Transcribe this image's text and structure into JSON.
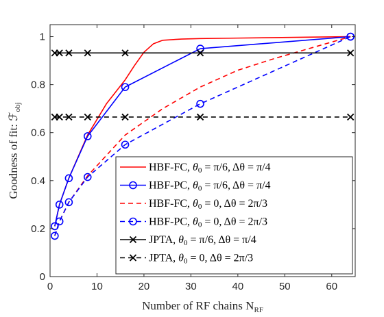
{
  "chart_data": {
    "type": "line",
    "xlabel": "Number of RF chains N",
    "xlabel_sub": "RF",
    "ylabel": "Goodness of fit: ℱ",
    "ylabel_sub": "obj",
    "xlim": [
      0,
      65
    ],
    "ylim": [
      0,
      1.05
    ],
    "xticks": [
      0,
      10,
      20,
      30,
      40,
      50,
      60
    ],
    "yticks": [
      0,
      0.2,
      0.4,
      0.6,
      0.8,
      1
    ],
    "ytick_labels": [
      "0",
      "0.2",
      "0.4",
      "0.6",
      "0.8",
      "1"
    ],
    "grid": false,
    "legend_position": "bottom-right",
    "series": [
      {
        "name": "HBF-FC, θ0 = π/6, Δθ = π/4",
        "color": "#ff0000",
        "dash": "solid",
        "marker": "none",
        "x": [
          1,
          2,
          4,
          8,
          12,
          16,
          18,
          20,
          22,
          24,
          28,
          32,
          40,
          48,
          56,
          64
        ],
        "y": [
          0.21,
          0.3,
          0.41,
          0.59,
          0.72,
          0.82,
          0.88,
          0.935,
          0.97,
          0.985,
          0.99,
          0.992,
          0.994,
          0.996,
          0.998,
          1.0
        ]
      },
      {
        "name": "HBF-PC, θ0 = π/6, Δθ = π/4",
        "color": "#0000ff",
        "dash": "solid",
        "marker": "circle",
        "x": [
          1,
          2,
          4,
          8,
          16,
          32,
          64
        ],
        "y": [
          0.21,
          0.3,
          0.41,
          0.585,
          0.79,
          0.95,
          1.0
        ]
      },
      {
        "name": "HBF-FC, θ0 = 0, Δθ = 2π/3",
        "color": "#ff0000",
        "dash": "dashed",
        "marker": "none",
        "x": [
          1,
          2,
          4,
          8,
          16,
          24,
          32,
          40,
          48,
          56,
          64
        ],
        "y": [
          0.17,
          0.23,
          0.31,
          0.42,
          0.59,
          0.7,
          0.79,
          0.86,
          0.91,
          0.955,
          1.0
        ]
      },
      {
        "name": "HBF-PC, θ0 = 0, Δθ = 2π/3",
        "color": "#0000ff",
        "dash": "dashed",
        "marker": "circle",
        "x": [
          1,
          2,
          4,
          8,
          16,
          32,
          64
        ],
        "y": [
          0.17,
          0.23,
          0.31,
          0.415,
          0.55,
          0.72,
          1.0
        ]
      },
      {
        "name": "JPTA, θ0 = π/6, Δθ = π/4",
        "color": "#000000",
        "dash": "solid",
        "marker": "x",
        "x": [
          1,
          2,
          4,
          8,
          16,
          32,
          64
        ],
        "y": [
          0.932,
          0.932,
          0.932,
          0.932,
          0.932,
          0.932,
          0.932
        ]
      },
      {
        "name": "JPTA, θ0 = 0, Δθ = 2π/3",
        "color": "#000000",
        "dash": "dashed",
        "marker": "x",
        "x": [
          1,
          2,
          4,
          8,
          16,
          32,
          64
        ],
        "y": [
          0.665,
          0.665,
          0.665,
          0.665,
          0.665,
          0.665,
          0.665
        ]
      }
    ],
    "legend_labels": [
      [
        "HBF-FC, ",
        "θ",
        "0",
        " = π/6, Δθ = π/4"
      ],
      [
        "HBF-PC, ",
        "θ",
        "0",
        " = π/6, Δθ = π/4"
      ],
      [
        "HBF-FC, ",
        "θ",
        "0",
        " = 0, Δθ = 2π/3"
      ],
      [
        "HBF-PC, ",
        "θ",
        "0",
        " = 0, Δθ = 2π/3"
      ],
      [
        "JPTA, ",
        "θ",
        "0",
        " = π/6, Δθ = π/4"
      ],
      [
        "JPTA, ",
        "θ",
        "0",
        " = 0, Δθ = 2π/3"
      ]
    ]
  }
}
